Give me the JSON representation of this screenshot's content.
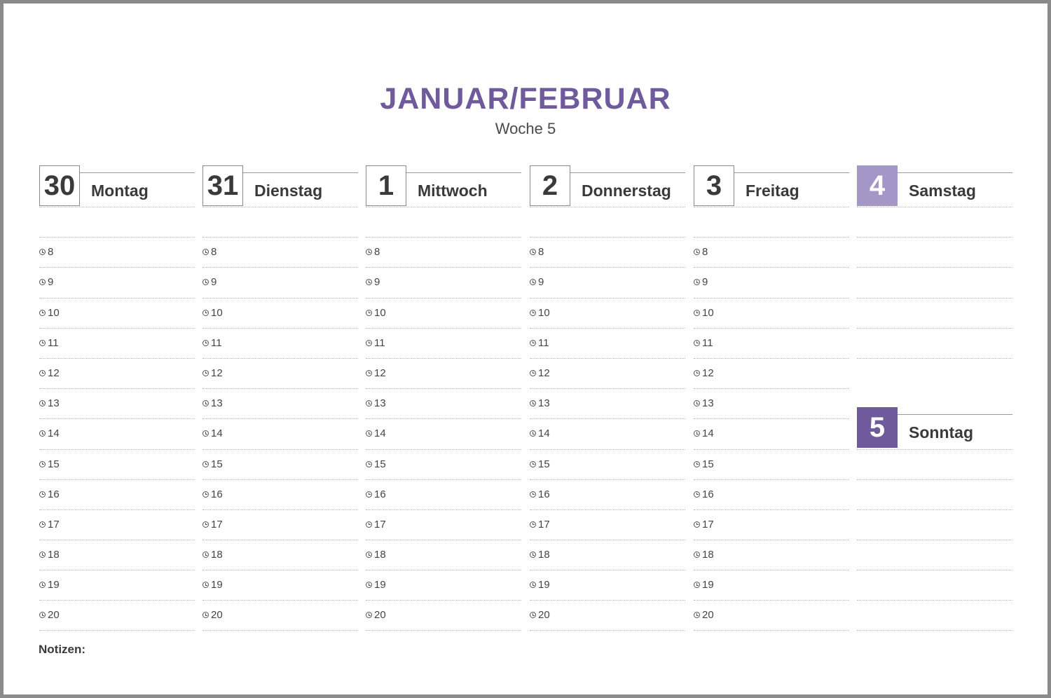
{
  "header": {
    "title": "JANUAR/FEBRUAR",
    "subtitle": "Woche 5"
  },
  "colors": {
    "accent": "#6f5a9c",
    "accent_light": "#a497c7"
  },
  "icons": {
    "slot_icon": "clock-icon"
  },
  "days": [
    {
      "number": "30",
      "name": "Montag"
    },
    {
      "number": "31",
      "name": "Dienstag"
    },
    {
      "number": "1",
      "name": "Mittwoch"
    },
    {
      "number": "2",
      "name": "Donnerstag"
    },
    {
      "number": "3",
      "name": "Freitag"
    },
    {
      "number": "4",
      "name": "Samstag"
    }
  ],
  "sunday": {
    "number": "5",
    "name": "Sonntag"
  },
  "hours": [
    "8",
    "9",
    "10",
    "11",
    "12",
    "13",
    "14",
    "15",
    "16",
    "17",
    "18",
    "19",
    "20"
  ],
  "notes": {
    "label": "Notizen:"
  }
}
